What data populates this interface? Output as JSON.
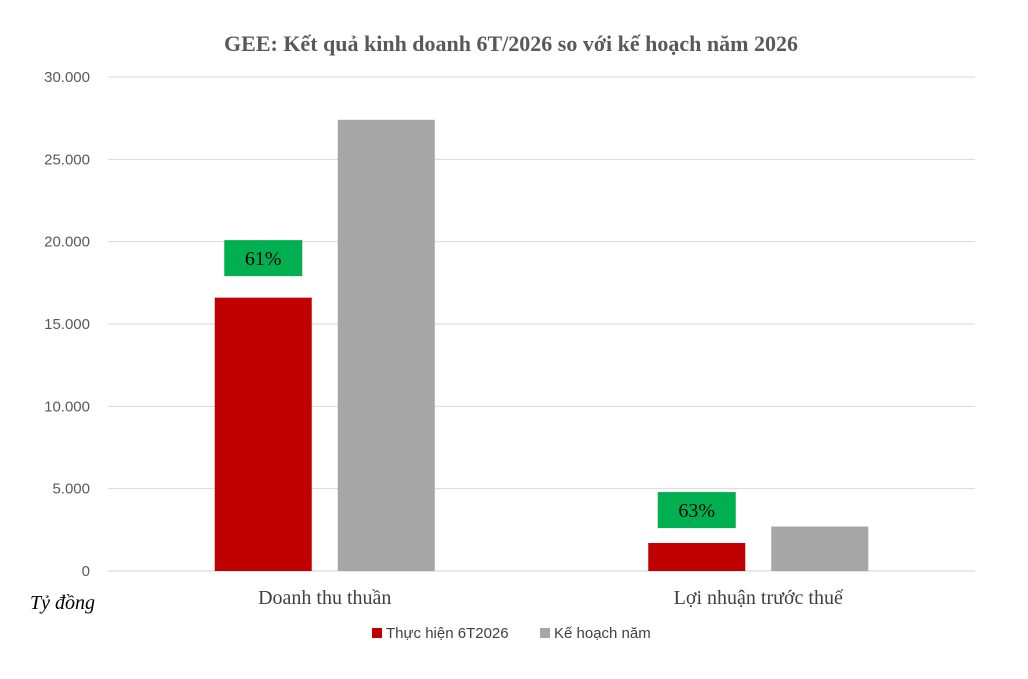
{
  "chart_data": {
    "type": "bar",
    "title": "GEE: Kết quả kinh doanh 6T/2026 so với kế hoạch năm 2026",
    "categories": [
      "Doanh thu thuần",
      "Lợi nhuận trước thuế"
    ],
    "series": [
      {
        "name": "Thực hiện 6T2026",
        "color": "#c00000",
        "values": [
          16600,
          1700
        ]
      },
      {
        "name": "Kế hoạch năm",
        "color": "#a6a6a6",
        "values": [
          27400,
          2700
        ]
      }
    ],
    "annotations": [
      {
        "category_index": 0,
        "label": "61%",
        "value": 19000,
        "color": "#00b050"
      },
      {
        "category_index": 1,
        "label": "63%",
        "value": 3700,
        "color": "#00b050"
      }
    ],
    "ylim": [
      0,
      30000
    ],
    "yticks": [
      0,
      5000,
      10000,
      15000,
      20000,
      25000,
      30000
    ],
    "ytick_labels": [
      "0",
      "5.000",
      "10.000",
      "15.000",
      "20.000",
      "25.000",
      "30.000"
    ],
    "unit_label": "Tỷ đồng",
    "grid": true,
    "legend_position": "bottom"
  }
}
